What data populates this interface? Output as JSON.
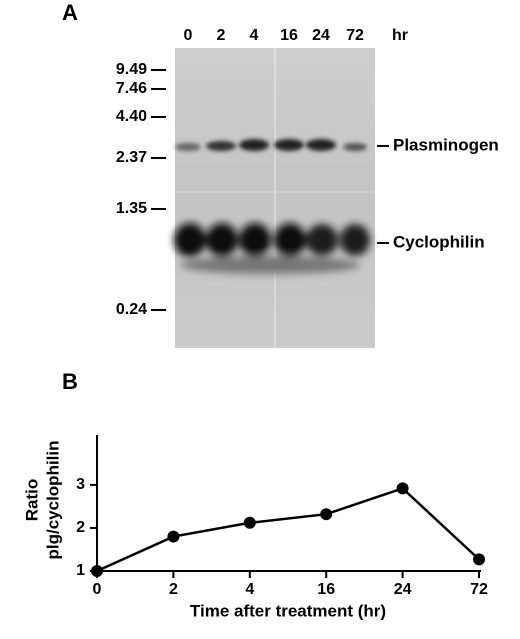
{
  "blot": {
    "panel_label": "A",
    "lanes": [
      "0",
      "2",
      "4",
      "16",
      "24",
      "72"
    ],
    "lane_unit": "hr",
    "markers": [
      "9.49",
      "7.46",
      "4.40",
      "2.37",
      "1.35",
      "0.24"
    ],
    "bands": [
      "Plasminogen",
      "Cyclophilin"
    ]
  },
  "chart_data": {
    "type": "line",
    "panel_label": "B",
    "ylabel": [
      "Ratio",
      "plg/cyclophilin"
    ],
    "xlabel": "Time after treatment (hr)",
    "categories": [
      "0",
      "2",
      "4",
      "16",
      "24",
      "72"
    ],
    "values": [
      1.0,
      1.8,
      2.12,
      2.32,
      2.92,
      1.27
    ],
    "color": "#000000",
    "ylim": [
      1,
      4.16
    ],
    "yticks": [
      1,
      2,
      3
    ]
  }
}
